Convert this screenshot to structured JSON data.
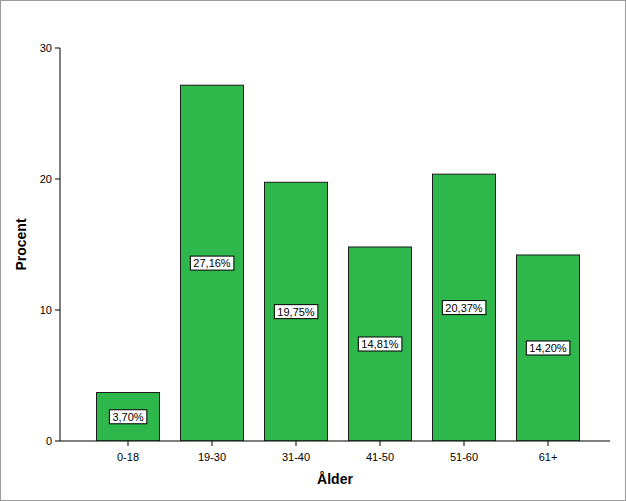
{
  "chart_data": {
    "type": "bar",
    "x_label": "Ålder",
    "y_label": "Procent",
    "categories": [
      "0-18",
      "19-30",
      "31-40",
      "41-50",
      "51-60",
      "61+"
    ],
    "values": [
      3.7,
      27.16,
      19.75,
      14.81,
      20.37,
      14.2
    ],
    "value_labels": [
      "3,70%",
      "27,16%",
      "19,75%",
      "14,81%",
      "20,37%",
      "14,20%"
    ],
    "color": "#2eb84b",
    "ylim": [
      0,
      30
    ],
    "yticks": [
      0,
      10,
      20,
      30
    ],
    "grid": false,
    "data_labels": true
  }
}
